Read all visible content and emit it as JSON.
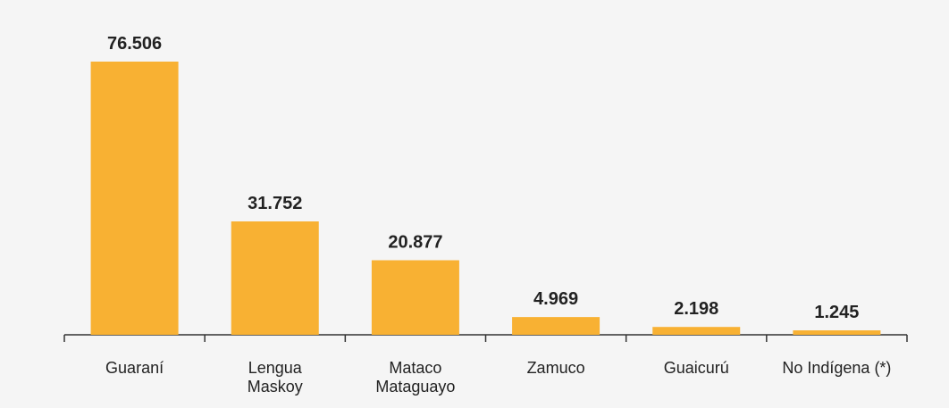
{
  "chart_data": {
    "type": "bar",
    "categories": [
      "Guaraní",
      "Lengua\nMaskoy",
      "Mataco\nMataguayo",
      "Zamuco",
      "Guaicurú",
      "No Indígena (*)"
    ],
    "values": [
      76506,
      31752,
      20877,
      4969,
      2198,
      1245
    ],
    "value_labels": [
      "76.506",
      "31.752",
      "20.877",
      "4.969",
      "2.198",
      "1.245"
    ],
    "color": "#f8b133"
  }
}
